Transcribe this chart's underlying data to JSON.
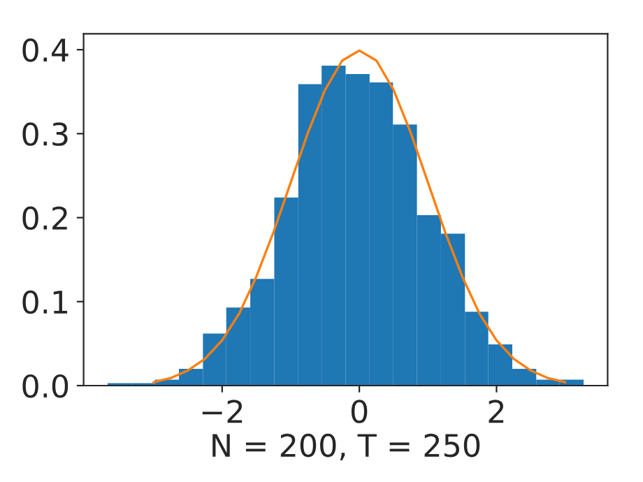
{
  "chart_data": {
    "type": "histogram",
    "xlabel": "N = 200, T = 250",
    "bins": [
      -3.67,
      -3.32,
      -2.98,
      -2.63,
      -2.28,
      -1.94,
      -1.59,
      -1.24,
      -0.89,
      -0.55,
      -0.2,
      0.15,
      0.49,
      0.84,
      1.19,
      1.54,
      1.88,
      2.23,
      2.58,
      2.92,
      3.27
    ],
    "values": [
      0.003,
      0.003,
      0.007,
      0.02,
      0.062,
      0.093,
      0.127,
      0.224,
      0.359,
      0.381,
      0.371,
      0.361,
      0.311,
      0.203,
      0.181,
      0.088,
      0.049,
      0.02,
      0.007,
      0.007
    ],
    "color": "#1f77b4",
    "series": [
      {
        "type": "line",
        "color": "#ff7f0e",
        "x": [
          -3,
          -2.75,
          -2.5,
          -2.25,
          -2,
          -1.75,
          -1.5,
          -1.25,
          -1,
          -0.75,
          -0.5,
          -0.25,
          0,
          0.25,
          0.5,
          0.75,
          1,
          1.25,
          1.5,
          1.75,
          2,
          2.25,
          2.5,
          2.75,
          3
        ],
        "values": [
          0.004,
          0.009,
          0.018,
          0.032,
          0.054,
          0.086,
          0.13,
          0.183,
          0.242,
          0.301,
          0.352,
          0.387,
          0.399,
          0.387,
          0.352,
          0.301,
          0.242,
          0.183,
          0.13,
          0.086,
          0.054,
          0.032,
          0.018,
          0.009,
          0.004
        ]
      }
    ],
    "xlim": [
      -4.02,
      3.62
    ],
    "ylim": [
      0,
      0.419
    ],
    "xticks": [
      {
        "value": -2,
        "label": "−2"
      },
      0,
      2
    ],
    "yticks": [
      {
        "value": 0,
        "label": "0.0"
      },
      0.1,
      0.2,
      0.3,
      0.4
    ],
    "grid": false
  }
}
